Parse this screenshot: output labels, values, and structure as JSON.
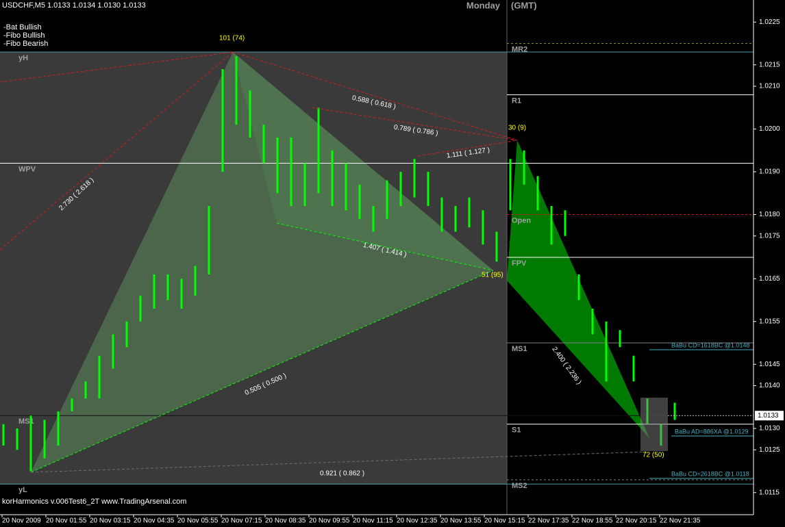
{
  "chart_data": {
    "type": "candlestick",
    "header": "USDCHF,M5  1.0133 1.0134 1.0130 1.0133",
    "day_label": "Monday",
    "timezone": "(GMT)",
    "legend": [
      {
        "name": "-Bat Bullish",
        "color": "#00ff00"
      },
      {
        "name": "-Fibo Bullish",
        "color": "#00cc00"
      },
      {
        "name": "-Fibo Bearish",
        "color": "#ff2020"
      }
    ],
    "footer": "korHarmonics v.006Test6_2T www.TradingArsenal.com",
    "annotations": [
      "101 (74)",
      "30 (9)",
      "51 (95)",
      "72 (50)",
      "0.588 ( 0.618 )",
      "0.789 ( 0.786 )",
      "1.111 ( 1.127 )",
      "2.730 ( 2.618 )",
      "1.407 ( 1.414 )",
      "0.505 ( 0.500 )",
      "0.921 ( 0.862 )",
      "2.400 ( 2.236 )"
    ],
    "babu_labels": [
      "BaBu CD=1618BC   @1.0148",
      "BaBu AD=886XA   @1.0129",
      "BaBu CD=2618BC   @1.0118"
    ],
    "ylim": [
      1.011,
      1.023
    ],
    "yticks": [
      {
        "value": 1.0225,
        "label": "1.0225"
      },
      {
        "value": 1.0215,
        "label": "1.0215"
      },
      {
        "value": 1.021,
        "label": "1.0210"
      },
      {
        "value": 1.02,
        "label": "1.0200"
      },
      {
        "value": 1.019,
        "label": "1.0190"
      },
      {
        "value": 1.018,
        "label": "1.0180"
      },
      {
        "value": 1.0175,
        "label": "1.0175"
      },
      {
        "value": 1.0165,
        "label": "1.0165"
      },
      {
        "value": 1.0155,
        "label": "1.0155"
      },
      {
        "value": 1.0145,
        "label": "1.0145"
      },
      {
        "value": 1.014,
        "label": "1.0140"
      },
      {
        "value": 1.013,
        "label": "1.0130"
      },
      {
        "value": 1.0125,
        "label": "1.0125"
      },
      {
        "value": 1.0115,
        "label": "1.0115"
      }
    ],
    "current_price": 1.0133,
    "current_price_label": "1.0133",
    "categories": [
      "20 Nov 2009",
      "20 Nov 01:55",
      "20 Nov 03:15",
      "20 Nov 04:35",
      "20 Nov 05:55",
      "20 Nov 07:15",
      "20 Nov 08:35",
      "20 Nov 09:55",
      "20 Nov 11:15",
      "20 Nov 12:35",
      "20 Nov 13:55",
      "20 Nov 15:15",
      "22 Nov 17:35",
      "22 Nov 18:55",
      "22 Nov 20:15",
      "22 Nov 21:35"
    ],
    "bars": {
      "color": "#00ff00",
      "high": [
        1.0131,
        1.013,
        1.0133,
        1.0132,
        1.0134,
        1.0137,
        1.0141,
        1.0147,
        1.0152,
        1.0155,
        1.0161,
        1.0166,
        1.0166,
        1.0165,
        1.0168,
        1.0182,
        1.0214,
        1.0217,
        1.0209,
        1.0201,
        1.0198,
        1.0198,
        1.0192,
        1.0205,
        1.0195,
        1.0192,
        1.0187,
        1.0182,
        1.0188,
        1.019,
        1.0193,
        1.019,
        1.0184,
        1.0182,
        1.0184,
        1.0181,
        1.0176,
        1.0193,
        1.0195,
        1.0189,
        1.0182,
        1.0181,
        1.0166,
        1.0158,
        1.0155,
        1.0153,
        1.0147,
        1.0137,
        1.0131,
        1.0136
      ],
      "low": [
        1.0126,
        1.0125,
        1.012,
        1.0123,
        1.0126,
        1.0134,
        1.0137,
        1.0137,
        1.0144,
        1.0149,
        1.0155,
        1.0158,
        1.016,
        1.0158,
        1.0161,
        1.0166,
        1.019,
        1.0201,
        1.0198,
        1.0192,
        1.0185,
        1.0182,
        1.0182,
        1.0185,
        1.0182,
        1.0181,
        1.0179,
        1.0176,
        1.0179,
        1.0182,
        1.0184,
        1.0182,
        1.0176,
        1.0176,
        1.0177,
        1.0173,
        1.0169,
        1.0181,
        1.0187,
        1.0181,
        1.0173,
        1.0175,
        1.016,
        1.0152,
        1.0141,
        1.0149,
        1.0141,
        1.0131,
        1.0126,
        1.0132
      ]
    },
    "yesterday_levels": [
      {
        "label": "yH",
        "value": 1.0218,
        "color": "#4a9aa8",
        "dash": false
      },
      {
        "label": "WPV",
        "value": 1.0192,
        "color": "#ffffff",
        "dash": false
      },
      {
        "label": "MS1",
        "value": 1.0133,
        "color": "#101010",
        "dash": false
      },
      {
        "label": "yL",
        "value": 1.0117,
        "color": "#4a9aa8",
        "dash": false
      }
    ],
    "pivot_levels": [
      {
        "label": "MR2",
        "value": 1.022,
        "color": "#8a8a3a",
        "dash": true
      },
      {
        "label": "R1",
        "value": 1.0208,
        "color": "#ffffff",
        "dash": false
      },
      {
        "label": "Open",
        "value": 1.018,
        "color": "#c02020",
        "dash": true
      },
      {
        "label": "FPV",
        "value": 1.017,
        "color": "#ffffff",
        "dash": false
      },
      {
        "label": "MS1",
        "value": 1.015,
        "color": "#808080",
        "dash": false
      },
      {
        "label": "S1",
        "value": 1.0131,
        "color": "#ffffff",
        "dash": false
      },
      {
        "label": "MS2",
        "value": 1.0118,
        "color": "#808080",
        "dash": true
      }
    ]
  }
}
